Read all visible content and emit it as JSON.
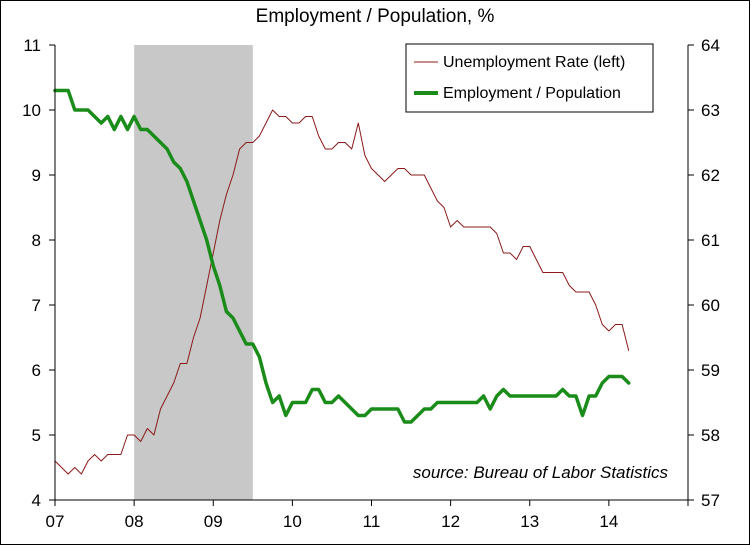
{
  "chart_data": {
    "type": "line",
    "title": "Employment / Population, %",
    "annotation": "source: Bureau of Labor Statistics",
    "x_tick_labels": [
      "07",
      "08",
      "09",
      "10",
      "11",
      "12",
      "13",
      "14"
    ],
    "x_tick_years": [
      2007,
      2008,
      2009,
      2010,
      2011,
      2012,
      2013,
      2014
    ],
    "xlim": [
      2007,
      2015
    ],
    "y_left": {
      "lim": [
        4,
        11
      ],
      "ticks": [
        4,
        5,
        6,
        7,
        8,
        9,
        10,
        11
      ]
    },
    "y_right": {
      "lim": [
        57,
        64
      ],
      "ticks": [
        57,
        58,
        59,
        60,
        61,
        62,
        63,
        64
      ]
    },
    "shaded_regions": [
      {
        "start": 2008.0,
        "end": 2009.5,
        "color": "#c8c8c8"
      }
    ],
    "legend": {
      "position": "top-right"
    },
    "series": [
      {
        "name": "Unemployment Rate (left)",
        "axis": "left",
        "color": "#8b1a1a",
        "line_width": "thin",
        "start": "2007-01",
        "frequency": "monthly",
        "values": [
          4.6,
          4.5,
          4.4,
          4.5,
          4.4,
          4.6,
          4.7,
          4.6,
          4.7,
          4.7,
          4.7,
          5.0,
          5.0,
          4.9,
          5.1,
          5.0,
          5.4,
          5.6,
          5.8,
          6.1,
          6.1,
          6.5,
          6.8,
          7.3,
          7.8,
          8.3,
          8.7,
          9.0,
          9.4,
          9.5,
          9.5,
          9.6,
          9.8,
          10.0,
          9.9,
          9.9,
          9.8,
          9.8,
          9.9,
          9.9,
          9.6,
          9.4,
          9.4,
          9.5,
          9.5,
          9.4,
          9.8,
          9.3,
          9.1,
          9.0,
          8.9,
          9.0,
          9.1,
          9.1,
          9.0,
          9.0,
          9.0,
          8.8,
          8.6,
          8.5,
          8.2,
          8.3,
          8.2,
          8.2,
          8.2,
          8.2,
          8.2,
          8.1,
          7.8,
          7.8,
          7.7,
          7.9,
          7.9,
          7.7,
          7.5,
          7.5,
          7.5,
          7.5,
          7.3,
          7.2,
          7.2,
          7.2,
          7.0,
          6.7,
          6.6,
          6.7,
          6.7,
          6.3
        ]
      },
      {
        "name": "Employment / Population",
        "axis": "right",
        "color": "#1a8c1a",
        "line_width": "thick",
        "start": "2007-01",
        "frequency": "monthly",
        "values": [
          63.3,
          63.3,
          63.3,
          63.0,
          63.0,
          63.0,
          62.9,
          62.8,
          62.9,
          62.7,
          62.9,
          62.7,
          62.9,
          62.7,
          62.7,
          62.6,
          62.5,
          62.4,
          62.2,
          62.1,
          61.9,
          61.6,
          61.3,
          61.0,
          60.6,
          60.3,
          59.9,
          59.8,
          59.6,
          59.4,
          59.4,
          59.2,
          58.8,
          58.5,
          58.6,
          58.3,
          58.5,
          58.5,
          58.5,
          58.7,
          58.7,
          58.5,
          58.5,
          58.6,
          58.5,
          58.4,
          58.3,
          58.3,
          58.4,
          58.4,
          58.4,
          58.4,
          58.4,
          58.2,
          58.2,
          58.3,
          58.4,
          58.4,
          58.5,
          58.5,
          58.5,
          58.5,
          58.5,
          58.5,
          58.5,
          58.6,
          58.4,
          58.6,
          58.7,
          58.6,
          58.6,
          58.6,
          58.6,
          58.6,
          58.6,
          58.6,
          58.6,
          58.7,
          58.6,
          58.6,
          58.3,
          58.6,
          58.6,
          58.8,
          58.9,
          58.9,
          58.9,
          58.8
        ]
      }
    ]
  }
}
